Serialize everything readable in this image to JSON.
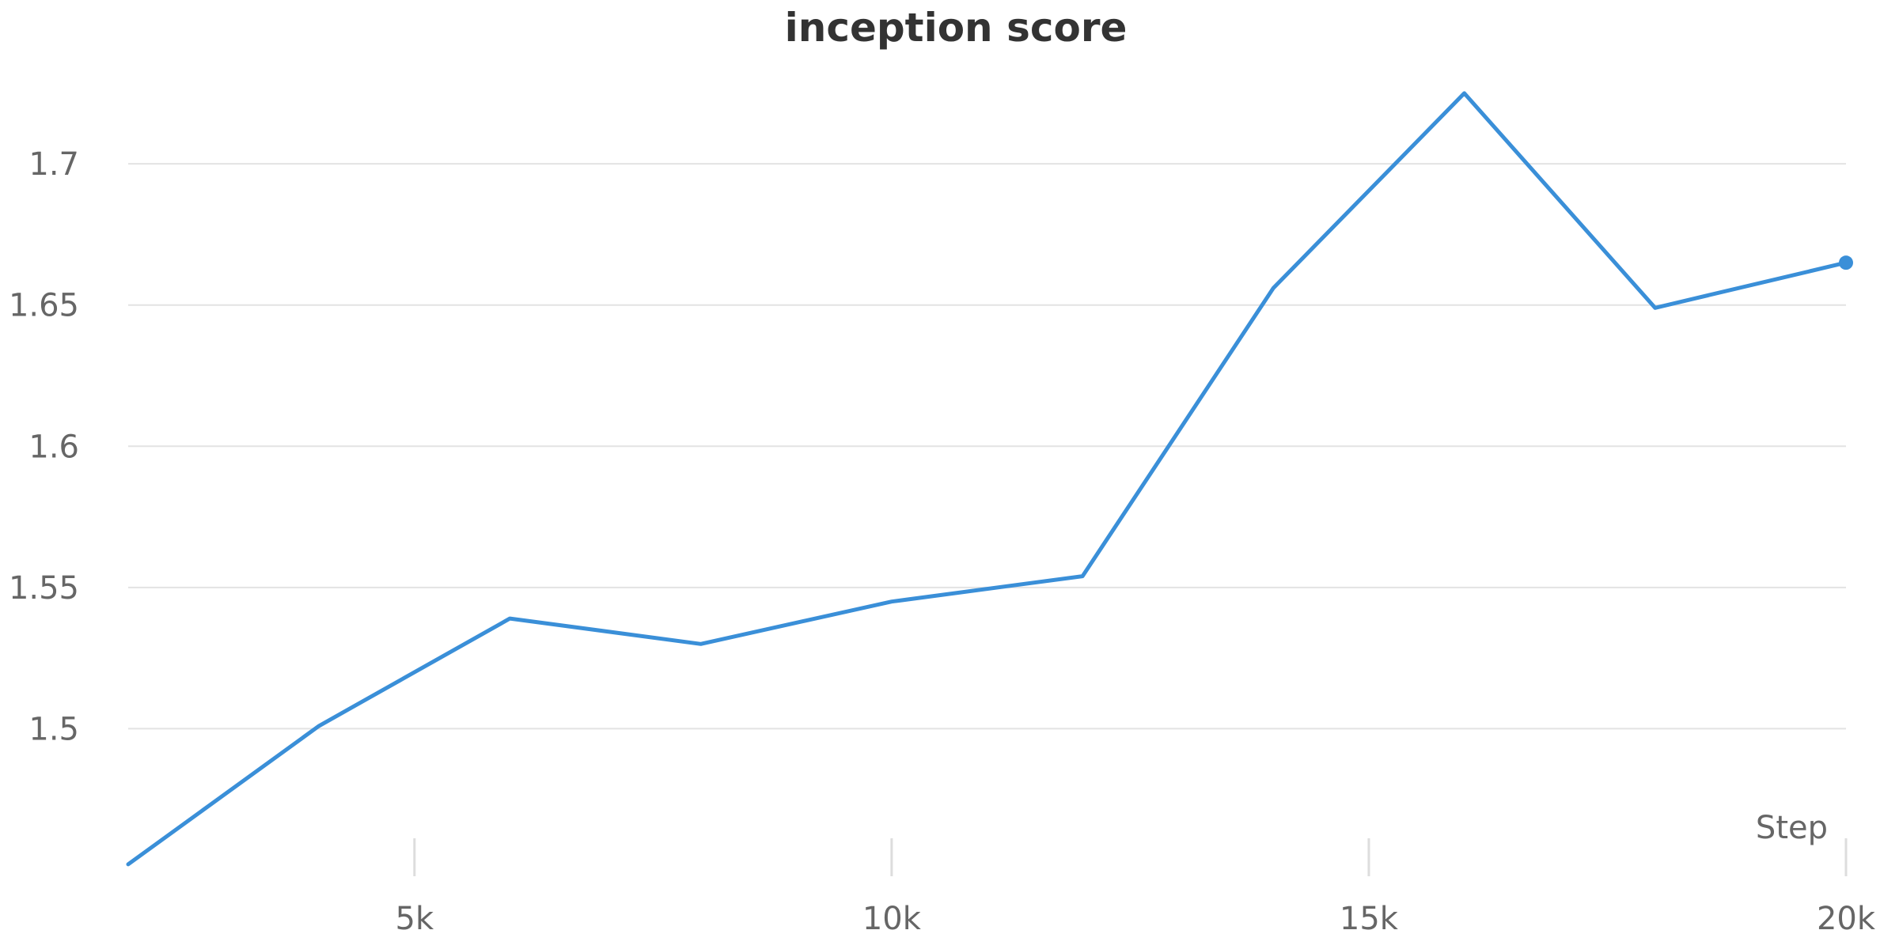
{
  "chart_data": {
    "type": "line",
    "title": "inception score",
    "xlabel": "Step",
    "ylabel": "",
    "x_ticks": [
      {
        "value": 5000,
        "label": "5k"
      },
      {
        "value": 10000,
        "label": "10k"
      },
      {
        "value": 15000,
        "label": "15k"
      },
      {
        "value": 20000,
        "label": "20k"
      }
    ],
    "y_ticks": [
      {
        "value": 1.5,
        "label": "1.5"
      },
      {
        "value": 1.55,
        "label": "1.55"
      },
      {
        "value": 1.6,
        "label": "1.6"
      },
      {
        "value": 1.65,
        "label": "1.65"
      },
      {
        "value": 1.7,
        "label": "1.7"
      }
    ],
    "xlim": [
      2000,
      20000
    ],
    "ylim": [
      1.45,
      1.73
    ],
    "grid": true,
    "series": [
      {
        "color": "#3a8fd8",
        "x": [
          2000,
          4000,
          6000,
          8000,
          10000,
          12000,
          14000,
          16000,
          18000,
          20000
        ],
        "y": [
          1.452,
          1.501,
          1.539,
          1.53,
          1.545,
          1.554,
          1.656,
          1.725,
          1.649,
          1.665
        ]
      }
    ]
  }
}
